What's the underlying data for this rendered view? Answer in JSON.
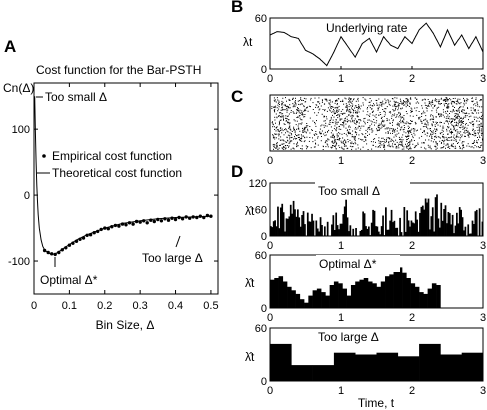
{
  "chart_data": [
    {
      "panel": "A",
      "type": "scatter+line",
      "title": "Cost function  for the Bar-PSTH",
      "ylabel": "Cn(Δ)",
      "xlabel": "Bin Size, Δ",
      "xlim": [
        0,
        0.52
      ],
      "ylim": [
        -150,
        170
      ],
      "xticks": [
        "0",
        "0.1",
        "0.2",
        "0.3",
        "0.4",
        "0.5"
      ],
      "yticks": [
        "-100",
        "0",
        "100"
      ],
      "legend": [
        "Empirical cost function",
        "Theoretical cost function"
      ],
      "annotations": {
        "small": "Too small Δ",
        "optimal": "Optimal Δ*",
        "large": "Too large Δ"
      },
      "theory": {
        "x": [
          0.002,
          0.004,
          0.006,
          0.008,
          0.01,
          0.012,
          0.015,
          0.02,
          0.025,
          0.03,
          0.04,
          0.05,
          0.06,
          0.07,
          0.08,
          0.1,
          0.12,
          0.15,
          0.2,
          0.25,
          0.3,
          0.35,
          0.4,
          0.45,
          0.5
        ],
        "y": [
          150,
          95,
          50,
          15,
          -10,
          -30,
          -50,
          -68,
          -78,
          -83,
          -88,
          -90,
          -89,
          -86,
          -82,
          -75,
          -68,
          -60,
          -50,
          -43,
          -39,
          -36,
          -34,
          -33,
          -32
        ]
      },
      "empirical": {
        "x": [
          0.03,
          0.04,
          0.05,
          0.06,
          0.07,
          0.08,
          0.09,
          0.1,
          0.11,
          0.12,
          0.13,
          0.14,
          0.15,
          0.16,
          0.17,
          0.18,
          0.19,
          0.2,
          0.21,
          0.22,
          0.23,
          0.24,
          0.25,
          0.26,
          0.27,
          0.28,
          0.29,
          0.3,
          0.31,
          0.32,
          0.33,
          0.34,
          0.35,
          0.36,
          0.37,
          0.38,
          0.39,
          0.4,
          0.41,
          0.42,
          0.43,
          0.44,
          0.45,
          0.46,
          0.47,
          0.48,
          0.49,
          0.5
        ],
        "y": [
          -84,
          -87,
          -89,
          -90,
          -87,
          -83,
          -80,
          -76,
          -73,
          -70,
          -67,
          -65,
          -61,
          -60,
          -57,
          -55,
          -52,
          -50,
          -51,
          -48,
          -46,
          -47,
          -44,
          -45,
          -42,
          -44,
          -40,
          -41,
          -39,
          -42,
          -38,
          -40,
          -37,
          -39,
          -36,
          -38,
          -35,
          -37,
          -34,
          -36,
          -33,
          -35,
          -33,
          -34,
          -32,
          -34,
          -31,
          -32
        ]
      }
    },
    {
      "panel": "B",
      "type": "line",
      "title": "Underlying rate",
      "ylabel": "λt",
      "xlim": [
        0,
        3
      ],
      "ylim": [
        0,
        60
      ],
      "xticks": [
        "0",
        "1",
        "2",
        "3"
      ],
      "yticks": [
        "0",
        "60"
      ],
      "x": [
        0,
        0.1,
        0.2,
        0.3,
        0.4,
        0.5,
        0.6,
        0.7,
        0.8,
        0.9,
        1.0,
        1.1,
        1.2,
        1.3,
        1.4,
        1.5,
        1.6,
        1.7,
        1.8,
        1.9,
        2.0,
        2.1,
        2.2,
        2.3,
        2.4,
        2.5,
        2.6,
        2.7,
        2.8,
        2.9,
        3.0
      ],
      "y": [
        40,
        44,
        43,
        38,
        36,
        22,
        18,
        12,
        4,
        20,
        38,
        26,
        14,
        30,
        36,
        20,
        38,
        28,
        24,
        38,
        30,
        46,
        54,
        42,
        26,
        46,
        28,
        40,
        24,
        38,
        20
      ]
    },
    {
      "panel": "C",
      "type": "raster",
      "xlim": [
        0,
        3
      ],
      "xticks": [
        "0",
        "1",
        "2",
        "3"
      ],
      "rate_modulation": [
        0.9,
        0.85,
        0.45,
        0.8,
        0.95,
        0.5,
        0.75,
        0.9,
        0.55,
        0.85,
        0.95,
        0.7
      ]
    },
    {
      "panel": "D1",
      "type": "bar",
      "annotation": "Too small Δ",
      "ylabel": "λ̂t",
      "xlim": [
        0,
        3
      ],
      "ylim": [
        0,
        120
      ],
      "xticks": [
        "0",
        "1",
        "2",
        "3"
      ],
      "yticks": [
        "0",
        "60",
        "120"
      ],
      "bin_width": 0.02,
      "base_rate": [
        40,
        44,
        43,
        38,
        36,
        22,
        18,
        12,
        4,
        20,
        38,
        26,
        14,
        30,
        36,
        20,
        38,
        28,
        24,
        38,
        30,
        46,
        54,
        42,
        26,
        46,
        28,
        40,
        24,
        38,
        20
      ],
      "noise_amplitude": 35
    },
    {
      "panel": "D2",
      "type": "bar",
      "annotation": "Optimal Δ*",
      "ylabel": "λ̂t",
      "xlim": [
        0,
        3
      ],
      "ylim": [
        0,
        60
      ],
      "xticks": [
        "0",
        "1",
        "2",
        "3"
      ],
      "yticks": [
        "0",
        "60"
      ],
      "bin_width": 0.06,
      "values": [
        32,
        34,
        36,
        30,
        24,
        20,
        16,
        10,
        6,
        14,
        20,
        22,
        18,
        14,
        26,
        30,
        28,
        22,
        14,
        26,
        30,
        32,
        34,
        30,
        28,
        24,
        30,
        36,
        38,
        42,
        46,
        40,
        34,
        28,
        24,
        18,
        16,
        22,
        28,
        26
      ]
    },
    {
      "panel": "D3",
      "type": "bar",
      "annotation": "Too large Δ",
      "ylabel": "λ̂t",
      "xlabel": "Time, t",
      "xlim": [
        0,
        3
      ],
      "ylim": [
        0,
        60
      ],
      "xticks": [
        "0",
        "1",
        "2",
        "3"
      ],
      "yticks": [
        "0",
        "60"
      ],
      "edges": [
        0,
        0.3,
        0.6,
        0.9,
        1.2,
        1.5,
        1.8,
        2.1,
        2.4,
        2.7,
        3.0
      ],
      "values": [
        42,
        18,
        18,
        32,
        30,
        32,
        28,
        42,
        30,
        32
      ]
    }
  ],
  "panel_labels": [
    "A",
    "B",
    "C",
    "D"
  ]
}
